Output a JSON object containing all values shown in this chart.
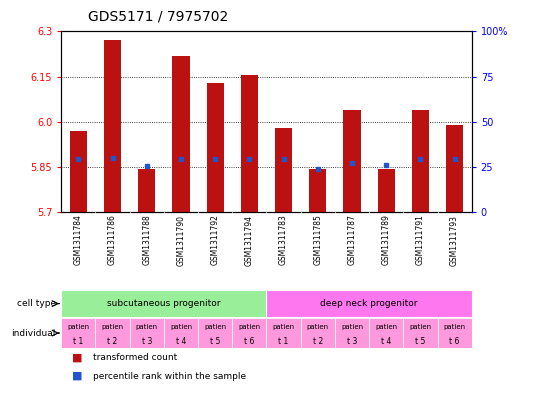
{
  "title": "GDS5171 / 7975702",
  "samples": [
    "GSM1311784",
    "GSM1311786",
    "GSM1311788",
    "GSM1311790",
    "GSM1311792",
    "GSM1311794",
    "GSM1311783",
    "GSM1311785",
    "GSM1311787",
    "GSM1311789",
    "GSM1311791",
    "GSM1311793"
  ],
  "bar_tops": [
    5.97,
    6.27,
    5.845,
    6.22,
    6.13,
    6.155,
    5.98,
    5.843,
    6.04,
    5.843,
    6.04,
    5.99
  ],
  "bar_base": 5.7,
  "blue_vals": [
    5.875,
    5.88,
    5.852,
    5.875,
    5.875,
    5.875,
    5.875,
    5.845,
    5.862,
    5.857,
    5.875,
    5.875
  ],
  "ylim": [
    5.7,
    6.3
  ],
  "yticks_left": [
    5.7,
    5.85,
    6.0,
    6.15,
    6.3
  ],
  "yticks_right": [
    0,
    25,
    50,
    75,
    100
  ],
  "bar_color": "#bb1111",
  "blue_color": "#2255cc",
  "bg_color": "#ffffff",
  "plot_bg": "#ffffff",
  "cell_type_groups": [
    {
      "label": "subcutaneous progenitor",
      "start": 0,
      "end": 6,
      "color": "#99ee99"
    },
    {
      "label": "deep neck progenitor",
      "start": 6,
      "end": 12,
      "color": "#ff77ee"
    }
  ],
  "individual_labels": [
    "t 1",
    "t 2",
    "t 3",
    "t 4",
    "t 5",
    "t 6",
    "t 1",
    "t 2",
    "t 3",
    "t 4",
    "t 5",
    "t 6"
  ],
  "individual_color": "#ff99dd",
  "sample_bg_color": "#cccccc",
  "legend_red": "transformed count",
  "legend_blue": "percentile rank within the sample",
  "title_fontsize": 10,
  "axis_fontsize": 7,
  "bar_width": 0.5
}
